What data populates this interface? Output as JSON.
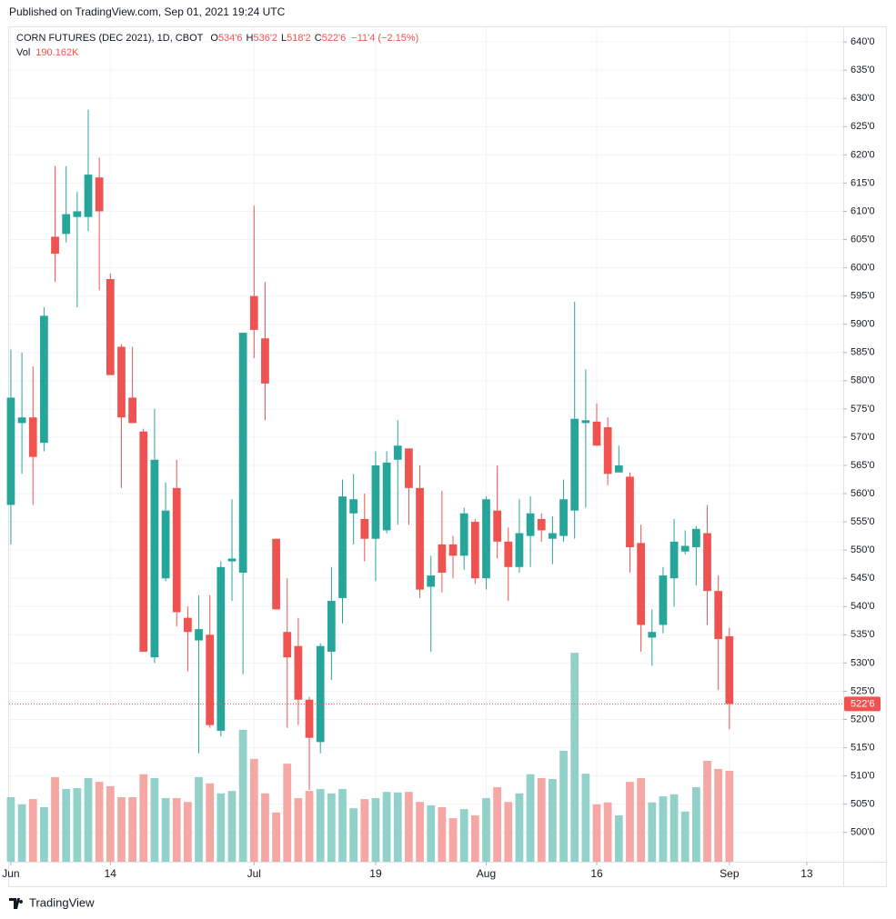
{
  "chart_data": {
    "type": "candlestick",
    "published": "Published on TradingView.com, Sep 01, 2021 19:24 UTC",
    "symbol": "CORN FUTURES (DEC 2021), 1D, CBOT",
    "legend": [
      {
        "key": "O",
        "value": "534'6"
      },
      {
        "key": "H",
        "value": "536'2"
      },
      {
        "key": "L",
        "value": "518'2"
      },
      {
        "key": "C",
        "value": "522'6"
      }
    ],
    "change": "−11'4 (−2.15%)",
    "volume_label": "Vol",
    "volume_value": "190.162K",
    "last_price_label": "522'6",
    "footer": "TradingView",
    "open": [
      558,
      572.5,
      573.5,
      569,
      605.5,
      606,
      609,
      609,
      616,
      598,
      586,
      577,
      571,
      531,
      545,
      561,
      538,
      534,
      535,
      518,
      548,
      546,
      595,
      587.5,
      552,
      535.5,
      533,
      523.5,
      516,
      532,
      541.5,
      556.5,
      555.5,
      552,
      553.5,
      566,
      568,
      561,
      543.5,
      551,
      551,
      549,
      555,
      545,
      557,
      551.5,
      547,
      552.5,
      555.5,
      552,
      552.5,
      557,
      572.5,
      572.75,
      571.75,
      563.75,
      563,
      551.25,
      534.5,
      536.75,
      545,
      549.75,
      550.5,
      553,
      542.75,
      534.75
    ],
    "high": [
      585.5,
      585,
      582.5,
      593,
      618,
      618,
      613.5,
      628,
      619.5,
      599,
      586.5,
      586,
      571.5,
      575,
      562,
      566,
      540,
      542,
      542,
      548,
      559,
      588.5,
      611,
      597.5,
      552,
      545,
      538,
      524,
      533.5,
      547,
      562.5,
      563.5,
      560,
      567.5,
      567.5,
      573,
      568,
      565,
      549,
      560.5,
      552.5,
      557.5,
      555.5,
      559.5,
      565,
      554,
      559,
      559.5,
      556.5,
      556,
      562.5,
      594,
      582,
      576,
      573.5,
      568.5,
      563.75,
      554.5,
      539.5,
      547,
      555.5,
      553.5,
      554.25,
      558,
      545.5,
      536.25
    ],
    "low": [
      551,
      563.5,
      558,
      567.5,
      597.5,
      604.5,
      593,
      606.5,
      596,
      581,
      561,
      572.5,
      532,
      530,
      544.5,
      536.5,
      528.5,
      514,
      518.5,
      517,
      541,
      528,
      584,
      573,
      539.5,
      518.5,
      519,
      507.5,
      514,
      527,
      537,
      551,
      548,
      544.5,
      553,
      554.5,
      554.5,
      541.5,
      532,
      542.5,
      545,
      546.5,
      544,
      543,
      548.5,
      541,
      546,
      547,
      551.5,
      547.5,
      551.5,
      552,
      557.5,
      568.5,
      561.5,
      563.75,
      546,
      532,
      529.5,
      535.25,
      540,
      549.25,
      543.75,
      536.75,
      525.25,
      518.25
    ],
    "close": [
      577,
      573.5,
      566.5,
      591.5,
      602.5,
      609.5,
      610,
      616.5,
      610,
      581,
      573.5,
      572.5,
      532,
      566,
      557,
      539,
      535.5,
      536,
      519,
      547,
      548.5,
      588.5,
      589,
      579.5,
      539.5,
      531,
      523.5,
      516.75,
      533,
      541,
      559.5,
      559,
      552,
      565,
      565.5,
      568.5,
      561,
      543,
      545.5,
      546,
      549,
      556.5,
      545,
      559,
      551.5,
      547,
      553,
      556.5,
      553.5,
      553,
      559,
      573.25,
      573,
      568.5,
      563.5,
      565,
      550.5,
      536.75,
      535.5,
      545.5,
      551.5,
      550.75,
      553.75,
      542.75,
      534.25,
      522.75
    ],
    "volume": [
      135000,
      120000,
      131000,
      114000,
      177000,
      152000,
      154000,
      175000,
      167000,
      158000,
      135000,
      135000,
      183000,
      175000,
      133000,
      133000,
      125000,
      177000,
      164000,
      143000,
      148000,
      276000,
      215000,
      143000,
      103000,
      205000,
      133000,
      148000,
      152000,
      143000,
      152000,
      112000,
      131000,
      133000,
      146000,
      145000,
      146000,
      125000,
      118000,
      114000,
      91000,
      110000,
      97000,
      133000,
      156000,
      125000,
      143000,
      183000,
      175000,
      173000,
      232000,
      437000,
      184000,
      120000,
      124000,
      97000,
      167000,
      175000,
      124000,
      137000,
      141000,
      105000,
      156000,
      211000,
      194000,
      190162
    ],
    "up_color": "#26a69a",
    "down_color": "#ef5350",
    "up_volume_color": "#91d1c9",
    "down_volume_color": "#f5a7a4",
    "xlim": [
      -0.16,
      75.3
    ],
    "xticks": [
      {
        "value": 0,
        "label": "Jun"
      },
      {
        "value": 9,
        "label": "14"
      },
      {
        "value": 22,
        "label": "Jul"
      },
      {
        "value": 33,
        "label": "19"
      },
      {
        "value": 43,
        "label": "Aug"
      },
      {
        "value": 53,
        "label": "16"
      },
      {
        "value": 65,
        "label": "Sep"
      },
      {
        "value": 72,
        "label": "13"
      }
    ],
    "ylim": [
      494.8,
      642.6
    ],
    "yticks": [
      {
        "value": 640,
        "label": "640'0"
      },
      {
        "value": 635,
        "label": "635'0"
      },
      {
        "value": 630,
        "label": "630'0"
      },
      {
        "value": 625,
        "label": "625'0"
      },
      {
        "value": 620,
        "label": "620'0"
      },
      {
        "value": 615,
        "label": "615'0"
      },
      {
        "value": 610,
        "label": "610'0"
      },
      {
        "value": 605,
        "label": "605'0"
      },
      {
        "value": 600,
        "label": "600'0"
      },
      {
        "value": 595,
        "label": "595'0"
      },
      {
        "value": 590,
        "label": "590'0"
      },
      {
        "value": 585,
        "label": "585'0"
      },
      {
        "value": 580,
        "label": "580'0"
      },
      {
        "value": 575,
        "label": "575'0"
      },
      {
        "value": 570,
        "label": "570'0"
      },
      {
        "value": 565,
        "label": "565'0"
      },
      {
        "value": 560,
        "label": "560'0"
      },
      {
        "value": 555,
        "label": "555'0"
      },
      {
        "value": 550,
        "label": "550'0"
      },
      {
        "value": 545,
        "label": "545'0"
      },
      {
        "value": 540,
        "label": "540'0"
      },
      {
        "value": 535,
        "label": "535'0"
      },
      {
        "value": 530,
        "label": "530'0"
      },
      {
        "value": 525,
        "label": "525'0"
      },
      {
        "value": 520,
        "label": "520'0"
      },
      {
        "value": 515,
        "label": "515'0"
      },
      {
        "value": 510,
        "label": "510'0"
      },
      {
        "value": 505,
        "label": "505'0"
      },
      {
        "value": 500,
        "label": "500'0"
      }
    ],
    "volume_lim": [
      0,
      500000
    ],
    "grid": true
  }
}
